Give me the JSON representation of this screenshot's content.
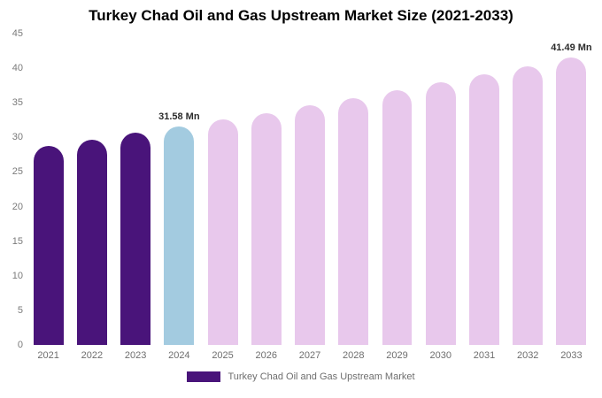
{
  "title": "Turkey Chad Oil and Gas Upstream Market Size (2021-2033)",
  "legend": {
    "label": "Turkey Chad Oil and Gas Upstream Market",
    "color": "#49147a"
  },
  "chart_data": {
    "type": "bar",
    "title": "Turkey Chad Oil and Gas Upstream Market Size (2021-2033)",
    "categories": [
      "2021",
      "2022",
      "2023",
      "2024",
      "2025",
      "2026",
      "2027",
      "2028",
      "2029",
      "2030",
      "2031",
      "2032",
      "2033"
    ],
    "values": [
      28.79,
      29.68,
      30.63,
      31.58,
      32.55,
      33.56,
      34.6,
      35.67,
      36.77,
      37.91,
      39.08,
      40.29,
      41.49
    ],
    "unit": "Mn",
    "bar_colors": [
      "#49147a",
      "#49147a",
      "#49147a",
      "#a3cbe0",
      "#e8c8ec",
      "#e8c8ec",
      "#e8c8ec",
      "#e8c8ec",
      "#e8c8ec",
      "#e8c8ec",
      "#e8c8ec",
      "#e8c8ec",
      "#e8c8ec"
    ],
    "annotations": [
      {
        "category": "2024",
        "text": "31.58 Mn"
      },
      {
        "category": "2033",
        "text": "41.49 Mn"
      }
    ],
    "xlabel": "",
    "ylabel": "",
    "ylim": [
      0,
      45
    ],
    "yticks": [
      0,
      5,
      10,
      15,
      20,
      25,
      30,
      35,
      40,
      45
    ],
    "grid": false,
    "legend_position": "bottom"
  }
}
